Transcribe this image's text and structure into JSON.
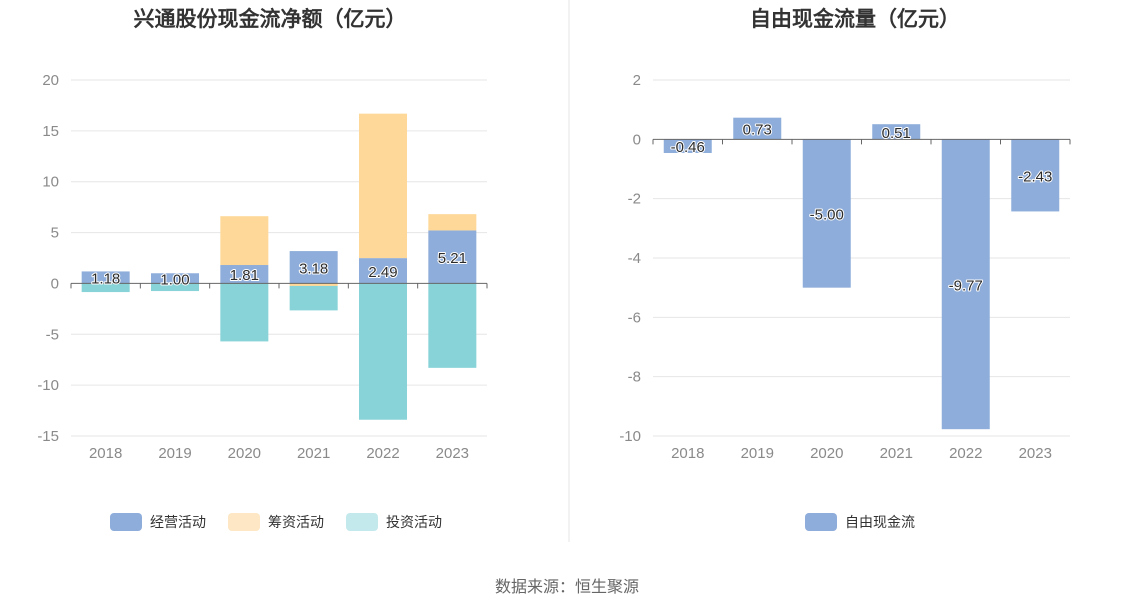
{
  "footer": {
    "source": "数据来源：恒生聚源"
  },
  "chart_data": [
    {
      "type": "bar",
      "stacked": true,
      "title": "兴通股份现金流净额（亿元）",
      "categories": [
        "2018",
        "2019",
        "2020",
        "2021",
        "2022",
        "2023"
      ],
      "ylim": [
        -15,
        20
      ],
      "yticks": [
        -15,
        -10,
        -5,
        0,
        5,
        10,
        15,
        20
      ],
      "series": [
        {
          "name": "经营活动",
          "color": "#8eadda",
          "values": [
            1.18,
            1.0,
            1.81,
            3.18,
            2.49,
            5.21
          ],
          "labels": [
            "1.18",
            "1.00",
            "1.81",
            "3.18",
            "2.49",
            "5.21"
          ]
        },
        {
          "name": "筹资活动",
          "color": "#fed898",
          "legend_color": "#fde7c4",
          "values": [
            0,
            0,
            4.8,
            -0.25,
            14.2,
            1.6
          ]
        },
        {
          "name": "投资活动",
          "color": "#87d3d8",
          "legend_color": "#c4e9ec",
          "values": [
            -0.85,
            -0.75,
            -5.7,
            -2.4,
            -13.4,
            -8.3
          ]
        }
      ],
      "legend": "bottom"
    },
    {
      "type": "bar",
      "title": "自由现金流量（亿元）",
      "categories": [
        "2018",
        "2019",
        "2020",
        "2021",
        "2022",
        "2023"
      ],
      "ylim": [
        -10,
        2
      ],
      "yticks": [
        -10,
        -8,
        -6,
        -4,
        -2,
        0,
        2
      ],
      "series": [
        {
          "name": "自由现金流",
          "color": "#8eadda",
          "values": [
            -0.46,
            0.73,
            -5.0,
            0.51,
            -9.77,
            -2.43
          ],
          "labels": [
            "-0.46",
            "0.73",
            "-5.00",
            "0.51",
            "-9.77",
            "-2.43"
          ]
        }
      ],
      "legend": "bottom"
    }
  ]
}
